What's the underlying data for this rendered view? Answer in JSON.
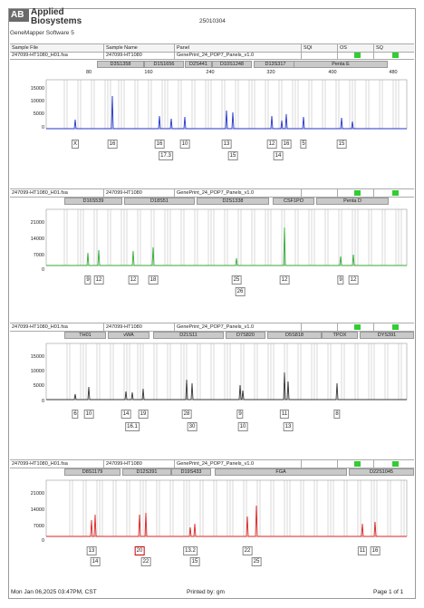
{
  "report": {
    "logo_mark": "AB",
    "company": [
      "Applied",
      "Biosystems"
    ],
    "software": "GeneMapper Software 5",
    "run_id": "25010304"
  },
  "table_header": [
    "Sample File",
    "Sample Name",
    "Panel",
    "SQI",
    "OS",
    "SQ"
  ],
  "scale_labels": [
    "80",
    "160",
    "240",
    "320",
    "400",
    "480"
  ],
  "panels": [
    {
      "sample_file": "247099-HT1080_H01.fsa",
      "sample_name": "247099-HT1080",
      "panel": "GenePrint_24_POP7_Panels_v1.0",
      "color": "#2233cc",
      "y_ticks": [
        "15000",
        "10000",
        "5000",
        "0"
      ],
      "loci": [
        "D3S1358",
        "D1S1656",
        "D2S441",
        "D10S1248",
        "D13S317",
        "Penta E"
      ],
      "alleles_top": [
        "X",
        "16",
        "16",
        "10",
        "13",
        "12",
        "16",
        "5",
        "15"
      ],
      "alleles_bottom": [
        "17.3",
        "15",
        "14"
      ]
    },
    {
      "sample_file": "247099-HT1080_H01.fsa",
      "sample_name": "247099-HT1080",
      "panel": "GenePrint_24_POP7_Panels_v1.0",
      "color": "#33aa33",
      "y_ticks": [
        "21000",
        "14000",
        "7000",
        "0"
      ],
      "loci": [
        "D16S539",
        "D18S51",
        "D2S1338",
        "CSF1PO",
        "Penta D"
      ],
      "alleles_top": [
        "9",
        "12",
        "12",
        "18",
        "25",
        "12",
        "9",
        "12"
      ],
      "alleles_bottom": [
        "26"
      ]
    },
    {
      "sample_file": "247099-HT1080_H01.fsa",
      "sample_name": "247099-HT1080",
      "panel": "GenePrint_24_POP7_Panels_v1.0",
      "color": "#333333",
      "y_ticks": [
        "15000",
        "10000",
        "5000",
        "0"
      ],
      "loci": [
        "TH01",
        "vWA",
        "D21S11",
        "D7S820",
        "D5S818",
        "TPOX",
        "DYS391"
      ],
      "alleles_top": [
        "6",
        "10",
        "14",
        "19",
        "28",
        "9",
        "11",
        "8"
      ],
      "alleles_bottom": [
        "16.1",
        "30",
        "10",
        "13"
      ]
    },
    {
      "sample_file": "247099-HT1080_H01.fsa",
      "sample_name": "247099-HT1080",
      "panel": "GenePrint_24_POP7_Panels_v1.0",
      "color": "#dd2222",
      "y_ticks": [
        "21000",
        "14000",
        "7000",
        "0"
      ],
      "loci": [
        "D8S1179",
        "D12S391",
        "D19S433",
        "FGA",
        "D22S1045"
      ],
      "alleles_top": [
        "13",
        "20",
        "13.2",
        "22",
        "11",
        "16"
      ],
      "alleles_bottom": [
        "14",
        "22",
        "15",
        "25"
      ]
    }
  ],
  "footer": {
    "date": "Mon Jan 06,2025 03:47PM, CST",
    "printed_by": "Printed by: gm",
    "page": "Page 1 of 1"
  }
}
